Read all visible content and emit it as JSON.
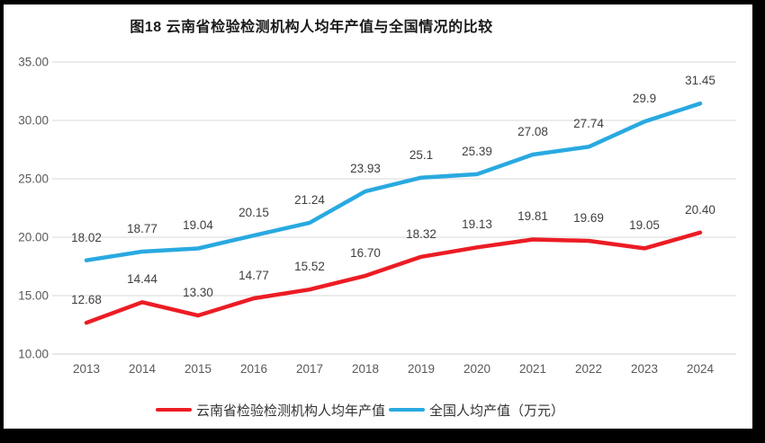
{
  "frame": {
    "background": "#000000",
    "canvas_background": "#ffffff"
  },
  "chart_data": {
    "type": "line",
    "title": "图18  云南省检验检测机构人均年产值与全国情况的比较",
    "categories": [
      "2013",
      "2014",
      "2015",
      "2016",
      "2017",
      "2018",
      "2019",
      "2020",
      "2021",
      "2022",
      "2023",
      "2024"
    ],
    "series": [
      {
        "name": "云南省检验检测机构人均年产值",
        "color": "#ec1c24",
        "values": [
          12.68,
          14.44,
          13.3,
          14.77,
          15.52,
          16.7,
          18.32,
          19.13,
          19.81,
          19.69,
          19.05,
          20.4
        ],
        "labels": [
          "12.68",
          "14.44",
          "13.30",
          "14.77",
          "15.52",
          "16.70",
          "18.32",
          "19.13",
          "19.81",
          "19.69",
          "19.05",
          "20.40"
        ]
      },
      {
        "name": "全国人均产值（万元）",
        "color": "#29a9e0",
        "values": [
          18.02,
          18.77,
          19.04,
          20.15,
          21.24,
          23.93,
          25.1,
          25.39,
          27.08,
          27.74,
          29.9,
          31.45
        ],
        "labels": [
          "18.02",
          "18.77",
          "19.04",
          "20.15",
          "21.24",
          "23.93",
          "25.1",
          "25.39",
          "27.08",
          "27.74",
          "29.9",
          "31.45"
        ]
      }
    ],
    "y_axis": {
      "min": 10,
      "max": 35,
      "step": 5,
      "tick_labels": [
        "35.00",
        "30.00",
        "25.00",
        "20.00",
        "15.00",
        "10.00"
      ]
    },
    "grid": true,
    "legend_position": "bottom",
    "colors": {
      "gridline": "#d9d9d9",
      "axis_line": "#d3d3d3",
      "axis_text": "#595959",
      "data_label_text": "#3f3f3f",
      "title_text": "#1a1a1a"
    }
  }
}
